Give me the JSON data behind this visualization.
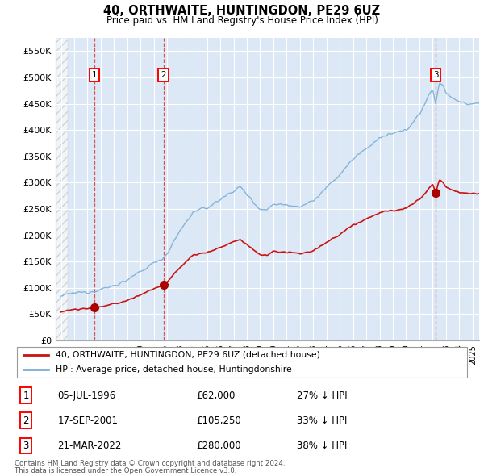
{
  "title": "40, ORTHWAITE, HUNTINGDON, PE29 6UZ",
  "subtitle": "Price paid vs. HM Land Registry's House Price Index (HPI)",
  "ylabel_ticks": [
    "£0",
    "£50K",
    "£100K",
    "£150K",
    "£200K",
    "£250K",
    "£300K",
    "£350K",
    "£400K",
    "£450K",
    "£500K",
    "£550K"
  ],
  "ytick_values": [
    0,
    50000,
    100000,
    150000,
    200000,
    250000,
    300000,
    350000,
    400000,
    450000,
    500000,
    550000
  ],
  "xlim_start": 1993.6,
  "xlim_end": 2025.5,
  "ylim_min": 0,
  "ylim_max": 575000,
  "sale_dates": [
    1996.52,
    2001.72,
    2022.22
  ],
  "sale_prices": [
    62000,
    105250,
    280000
  ],
  "sale_labels": [
    "1",
    "2",
    "3"
  ],
  "hpi_line_color": "#7aaed6",
  "price_line_color": "#cc1111",
  "dot_color": "#aa0000",
  "vline_color": "#dd3333",
  "hatched_region_end": 1994.5,
  "shaded_band_color": "#dce8f5",
  "legend_entries": [
    "40, ORTHWAITE, HUNTINGDON, PE29 6UZ (detached house)",
    "HPI: Average price, detached house, Huntingdonshire"
  ],
  "table_rows": [
    [
      "1",
      "05-JUL-1996",
      "£62,000",
      "27% ↓ HPI"
    ],
    [
      "2",
      "17-SEP-2001",
      "£105,250",
      "33% ↓ HPI"
    ],
    [
      "3",
      "21-MAR-2022",
      "£280,000",
      "38% ↓ HPI"
    ]
  ],
  "footnote1": "Contains HM Land Registry data © Crown copyright and database right 2024.",
  "footnote2": "This data is licensed under the Open Government Licence v3.0.",
  "background_chart": "#dce8f5",
  "hatch_facecolor": "#c8c8d8"
}
